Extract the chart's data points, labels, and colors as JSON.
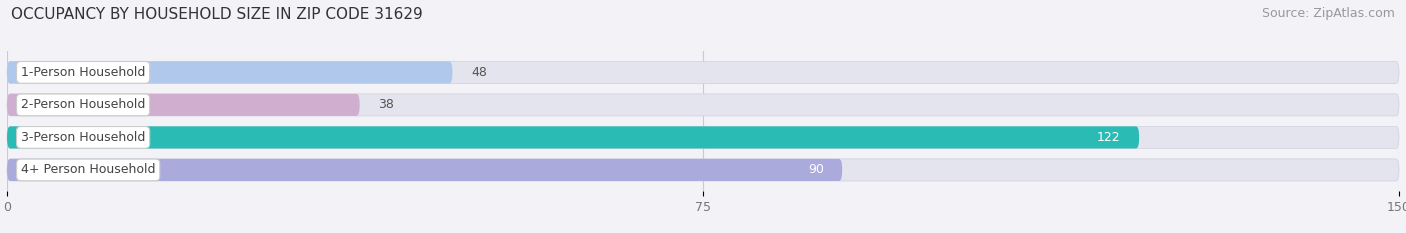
{
  "title": "OCCUPANCY BY HOUSEHOLD SIZE IN ZIP CODE 31629",
  "source": "Source: ZipAtlas.com",
  "categories": [
    "1-Person Household",
    "2-Person Household",
    "3-Person Household",
    "4+ Person Household"
  ],
  "values": [
    48,
    38,
    122,
    90
  ],
  "bar_colors": [
    "#b0c8ec",
    "#d0aed0",
    "#2abcb4",
    "#aaaadc"
  ],
  "label_colors": [
    "#555555",
    "#555555",
    "#ffffff",
    "#ffffff"
  ],
  "value_outside_color": "#555555",
  "xlim": [
    0,
    150
  ],
  "xticks": [
    0,
    75,
    150
  ],
  "background_color": "#f2f2f7",
  "bar_background_color": "#e4e4ee",
  "title_fontsize": 11,
  "source_fontsize": 9,
  "label_fontsize": 9,
  "value_fontsize": 9,
  "bar_height": 0.68,
  "rounding_size": 0.34
}
